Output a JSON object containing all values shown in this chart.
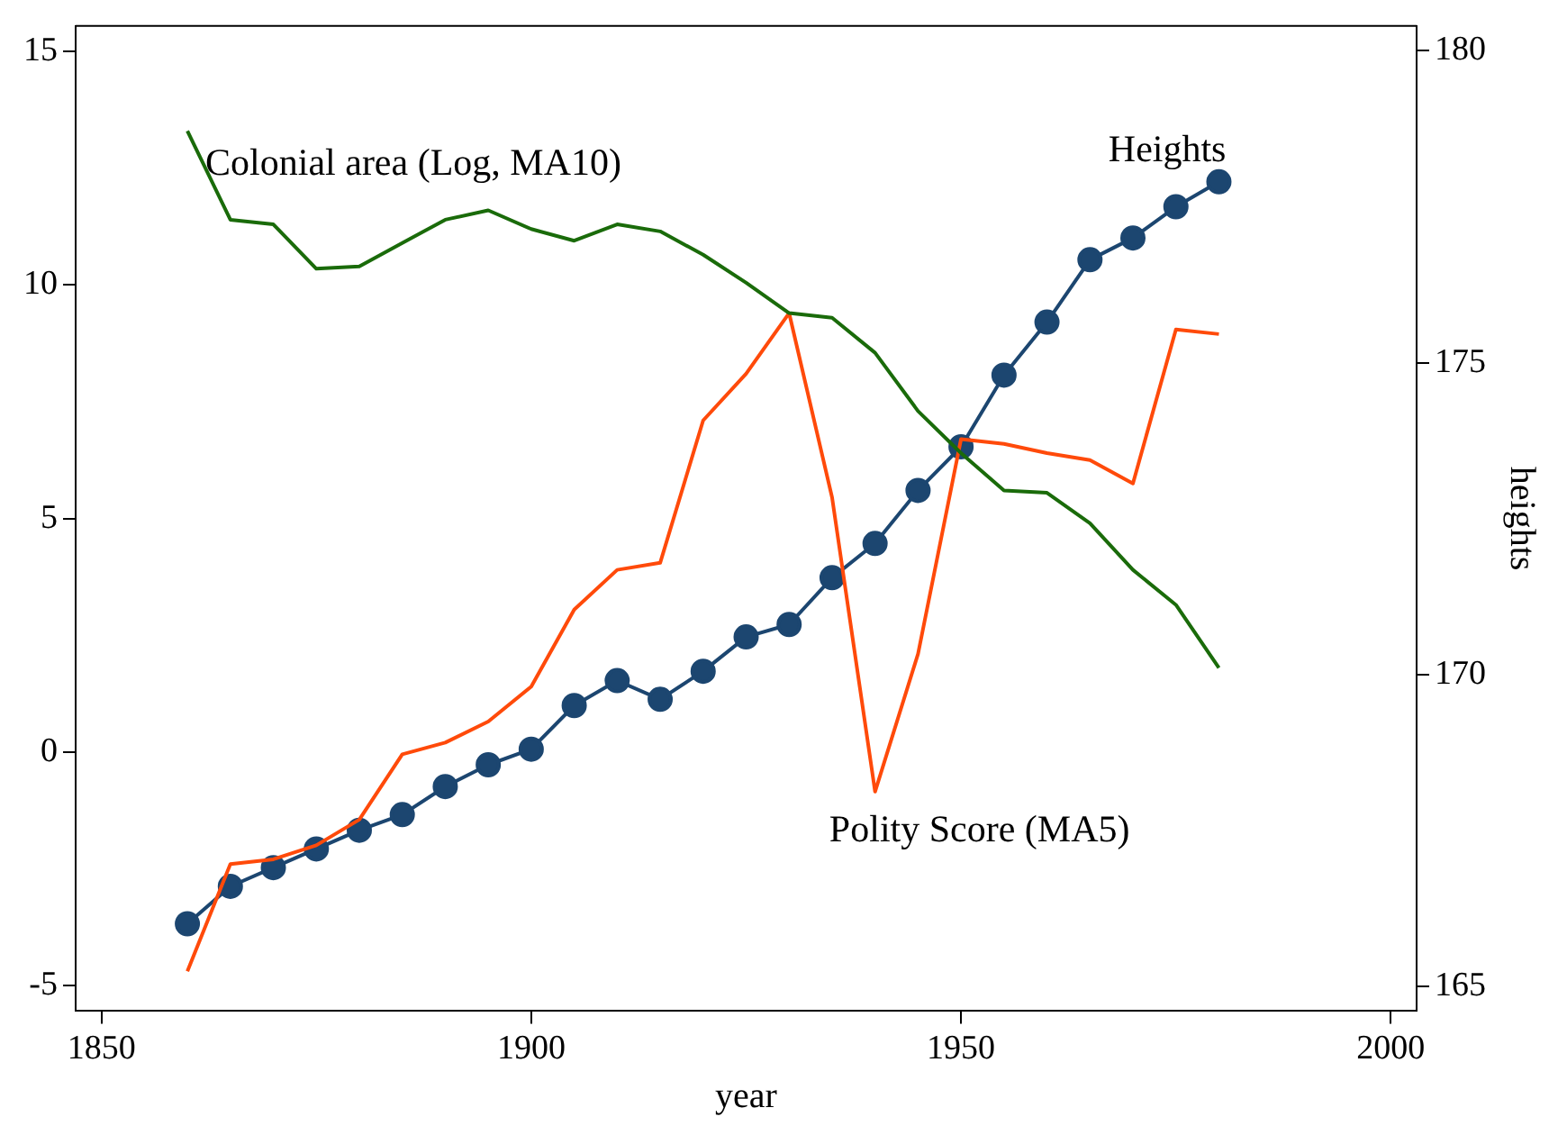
{
  "chart_data": {
    "type": "line",
    "xlabel": "year",
    "y2label": "heights",
    "x": [
      1860,
      1865,
      1870,
      1875,
      1880,
      1885,
      1890,
      1895,
      1900,
      1905,
      1910,
      1915,
      1920,
      1925,
      1930,
      1935,
      1940,
      1945,
      1950,
      1955,
      1960,
      1965,
      1970,
      1975,
      1980
    ],
    "series": [
      {
        "name": "Colonial area (Log, MA10)",
        "color": "#1a6b0a",
        "marker": "none",
        "values": [
          13.3,
          11.4,
          11.3,
          10.35,
          10.4,
          10.9,
          11.4,
          11.6,
          11.2,
          10.95,
          11.3,
          11.15,
          10.65,
          10.05,
          9.4,
          9.3,
          8.55,
          7.3,
          6.4,
          5.6,
          5.55,
          4.9,
          3.9,
          3.15,
          1.8
        ]
      },
      {
        "name": "Polity Score (MA5)",
        "color": "#ff4a0a",
        "marker": "none",
        "values": [
          -4.7,
          -2.4,
          -2.3,
          -2.0,
          -1.45,
          -0.05,
          0.2,
          0.65,
          1.4,
          3.05,
          3.9,
          4.05,
          7.1,
          8.1,
          9.4,
          5.45,
          -0.85,
          2.1,
          6.7,
          6.6,
          6.4,
          6.25,
          5.75,
          9.05,
          8.95
        ]
      },
      {
        "name": "Heights",
        "color": "#1c4670",
        "marker": "circle",
        "axis": "y2",
        "values": [
          166.0,
          166.6,
          166.9,
          167.2,
          167.5,
          167.75,
          168.2,
          168.55,
          168.8,
          169.5,
          169.9,
          169.6,
          170.05,
          170.6,
          170.8,
          171.55,
          172.1,
          172.95,
          173.65,
          174.8,
          175.65,
          176.65,
          177.0,
          177.5,
          177.9
        ]
      }
    ],
    "xlim": [
      1847,
      2003
    ],
    "xticks": [
      1850,
      1900,
      1950,
      2000
    ],
    "ylim": [
      -5.55,
      15.55
    ],
    "yticks": [
      -5,
      0,
      5,
      10,
      15
    ],
    "y2lim": [
      164.6,
      180.4
    ],
    "y2ticks": [
      165,
      170,
      175,
      180
    ],
    "grid": false,
    "legend": false,
    "line_style": "solid"
  }
}
